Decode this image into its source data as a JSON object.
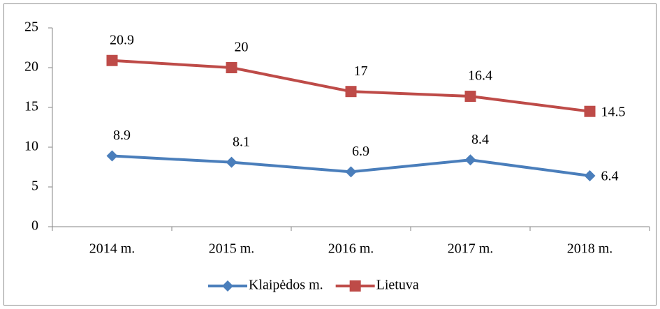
{
  "chart_data": {
    "type": "line",
    "categories": [
      "2014 m.",
      "2015 m.",
      "2016 m.",
      "2017 m.",
      "2018 m."
    ],
    "series": [
      {
        "name": "Klaipėdos m.",
        "color": "#4a7ebb",
        "marker": "diamond",
        "values": [
          8.9,
          8.1,
          6.9,
          8.4,
          6.4
        ]
      },
      {
        "name": "Lietuva",
        "color": "#be4b48",
        "marker": "square",
        "values": [
          20.9,
          20,
          17,
          16.4,
          14.5
        ]
      }
    ],
    "ylim": [
      0,
      25
    ],
    "yticks": [
      0,
      5,
      10,
      15,
      20,
      25
    ],
    "grid": false,
    "legend": "bottom"
  }
}
